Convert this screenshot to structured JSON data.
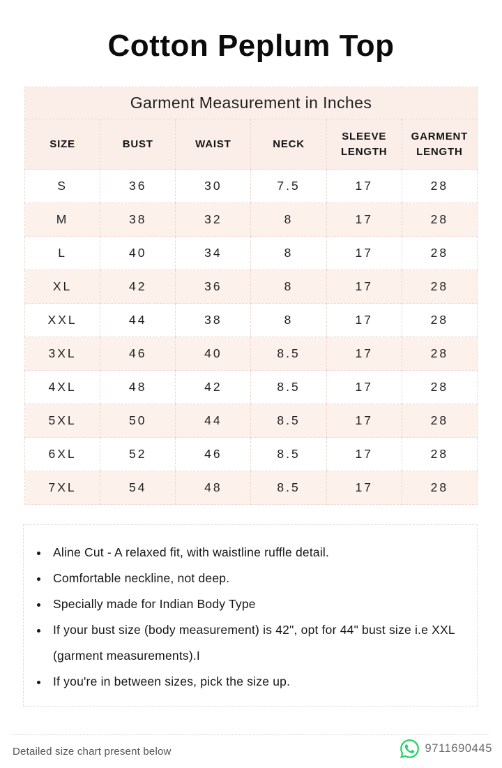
{
  "title": "Cotton Peplum Top",
  "table": {
    "caption": "Garment Measurement in Inches",
    "columns": [
      "SIZE",
      "BUST",
      "WAIST",
      "NECK",
      "SLEEVE LENGTH",
      "GARMENT LENGTH"
    ],
    "rows": [
      [
        "S",
        "36",
        "30",
        "7.5",
        "17",
        "28"
      ],
      [
        "M",
        "38",
        "32",
        "8",
        "17",
        "28"
      ],
      [
        "L",
        "40",
        "34",
        "8",
        "17",
        "28"
      ],
      [
        "XL",
        "42",
        "36",
        "8",
        "17",
        "28"
      ],
      [
        "XXL",
        "44",
        "38",
        "8",
        "17",
        "28"
      ],
      [
        "3XL",
        "46",
        "40",
        "8.5",
        "17",
        "28"
      ],
      [
        "4XL",
        "48",
        "42",
        "8.5",
        "17",
        "28"
      ],
      [
        "5XL",
        "50",
        "44",
        "8.5",
        "17",
        "28"
      ],
      [
        "6XL",
        "52",
        "46",
        "8.5",
        "17",
        "28"
      ],
      [
        "7XL",
        "54",
        "48",
        "8.5",
        "17",
        "28"
      ]
    ]
  },
  "notes": [
    "Aline Cut - A relaxed fit, with waistline ruffle detail.",
    "Comfortable neckline,  not deep.",
    "Specially made for Indian Body Type",
    "If your bust size (body measurement) is 42\", opt for 44\" bust size i.e XXL (garment measurements).I",
    "If you're in between sizes, pick the size up."
  ],
  "footer": {
    "left": "Detailed size chart present below",
    "phone": "9711690445",
    "whatsapp_icon": "whatsapp-icon"
  },
  "colors": {
    "header_pink": "#fbeee8",
    "row_pink": "#fdf1ec",
    "grid_dash": "#ecd8d1",
    "whatsapp_green": "#25D366"
  }
}
